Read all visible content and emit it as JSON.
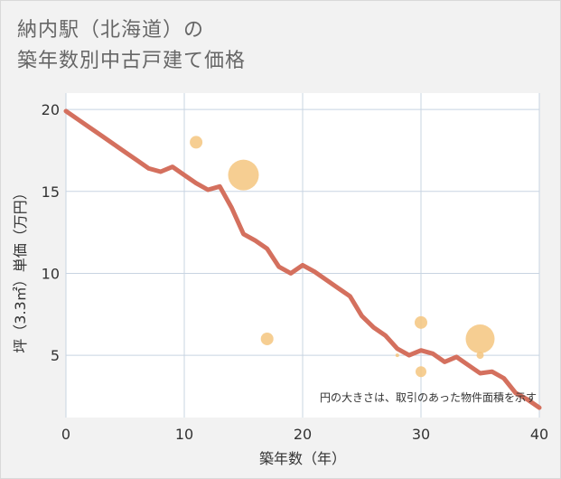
{
  "title_line1": "納内駅（北海道）の",
  "title_line2": "築年数別中古戸建て価格",
  "chart_data": {
    "type": "line+scatter",
    "xlabel": "築年数（年）",
    "ylabel": "坪（3.3㎡）単価（万円）",
    "note": "円の大きさは、取引のあった物件面積を示す",
    "xlim": [
      0,
      40
    ],
    "ylim": [
      1.2,
      21.0
    ],
    "xticks": [
      0,
      10,
      20,
      30,
      40
    ],
    "yticks": [
      5,
      10,
      15,
      20
    ],
    "line": {
      "name": "trend",
      "x": [
        0,
        1,
        2,
        3,
        4,
        5,
        6,
        7,
        8,
        9,
        10,
        11,
        12,
        13,
        14,
        15,
        16,
        17,
        18,
        19,
        20,
        21,
        22,
        23,
        24,
        25,
        26,
        27,
        28,
        29,
        30,
        31,
        32,
        33,
        34,
        35,
        36,
        37,
        38,
        39,
        40
      ],
      "y": [
        19.9,
        19.4,
        18.9,
        18.4,
        17.9,
        17.4,
        16.9,
        16.4,
        16.2,
        16.5,
        16.0,
        15.5,
        15.1,
        15.3,
        14.0,
        12.4,
        12.0,
        11.5,
        10.4,
        10.0,
        10.5,
        10.1,
        9.6,
        9.1,
        8.6,
        7.4,
        6.7,
        6.2,
        5.4,
        5.0,
        5.3,
        5.1,
        4.6,
        4.9,
        4.4,
        3.9,
        4.0,
        3.6,
        2.7,
        2.3,
        1.8
      ]
    },
    "points": [
      {
        "x": 11,
        "y": 18.0,
        "size": 7
      },
      {
        "x": 15,
        "y": 16.0,
        "size": 17
      },
      {
        "x": 17,
        "y": 6.0,
        "size": 7
      },
      {
        "x": 28,
        "y": 5.0,
        "size": 2
      },
      {
        "x": 30,
        "y": 7.0,
        "size": 7
      },
      {
        "x": 30,
        "y": 4.0,
        "size": 6
      },
      {
        "x": 35,
        "y": 6.0,
        "size": 16
      },
      {
        "x": 35,
        "y": 5.0,
        "size": 4
      }
    ],
    "colors": {
      "line": "#d4705e",
      "points": "#f5c57f",
      "grid": "#c8d4e2",
      "plot_bg": "#ffffff"
    }
  }
}
